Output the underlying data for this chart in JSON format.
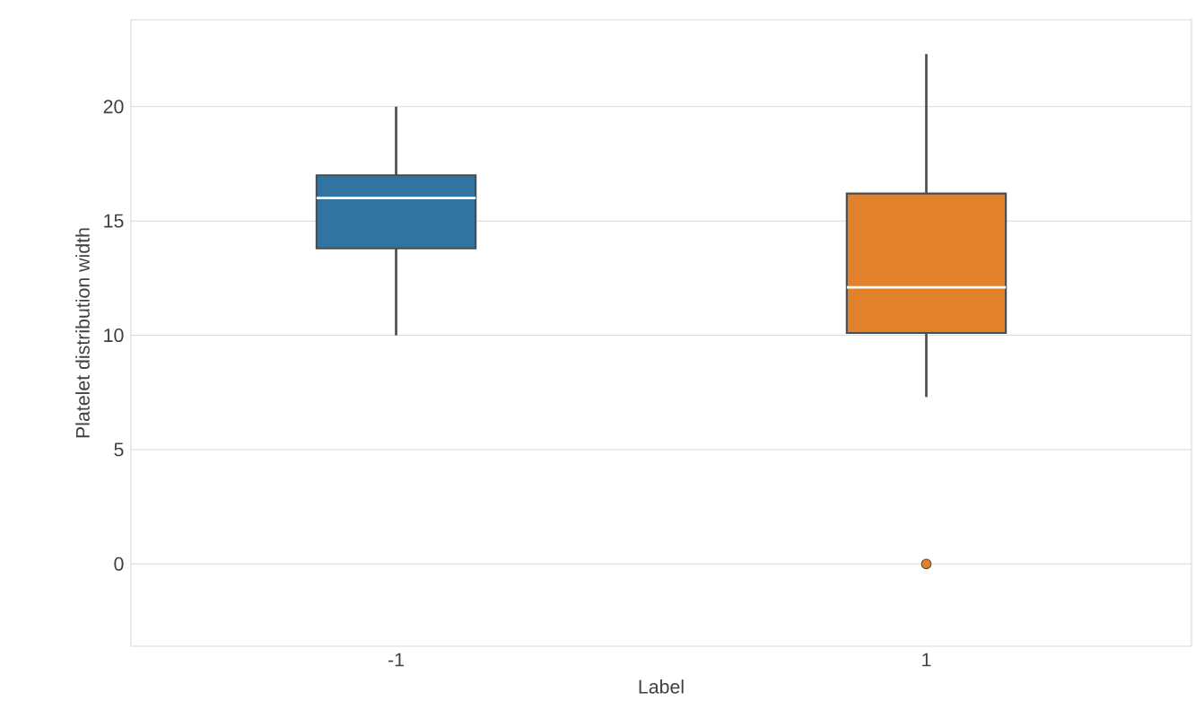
{
  "chart_data": {
    "type": "box",
    "xlabel": "Label",
    "ylabel": "Platelet distribution width",
    "categories": [
      "-1",
      "1"
    ],
    "boxes": [
      {
        "low": 10,
        "q1": 13.8,
        "median": 16,
        "q3": 17,
        "high": 20
      },
      {
        "low": 7.3,
        "q1": 10.1,
        "median": 12.1,
        "q3": 16.2,
        "high": 22.3,
        "outliers": [
          0
        ]
      }
    ],
    "colors": [
      "#3274a1",
      "#e1812c"
    ],
    "ylim": [
      -3.6,
      23.8
    ],
    "yticks": [
      0,
      5,
      10,
      15,
      20
    ],
    "grid": "y"
  }
}
